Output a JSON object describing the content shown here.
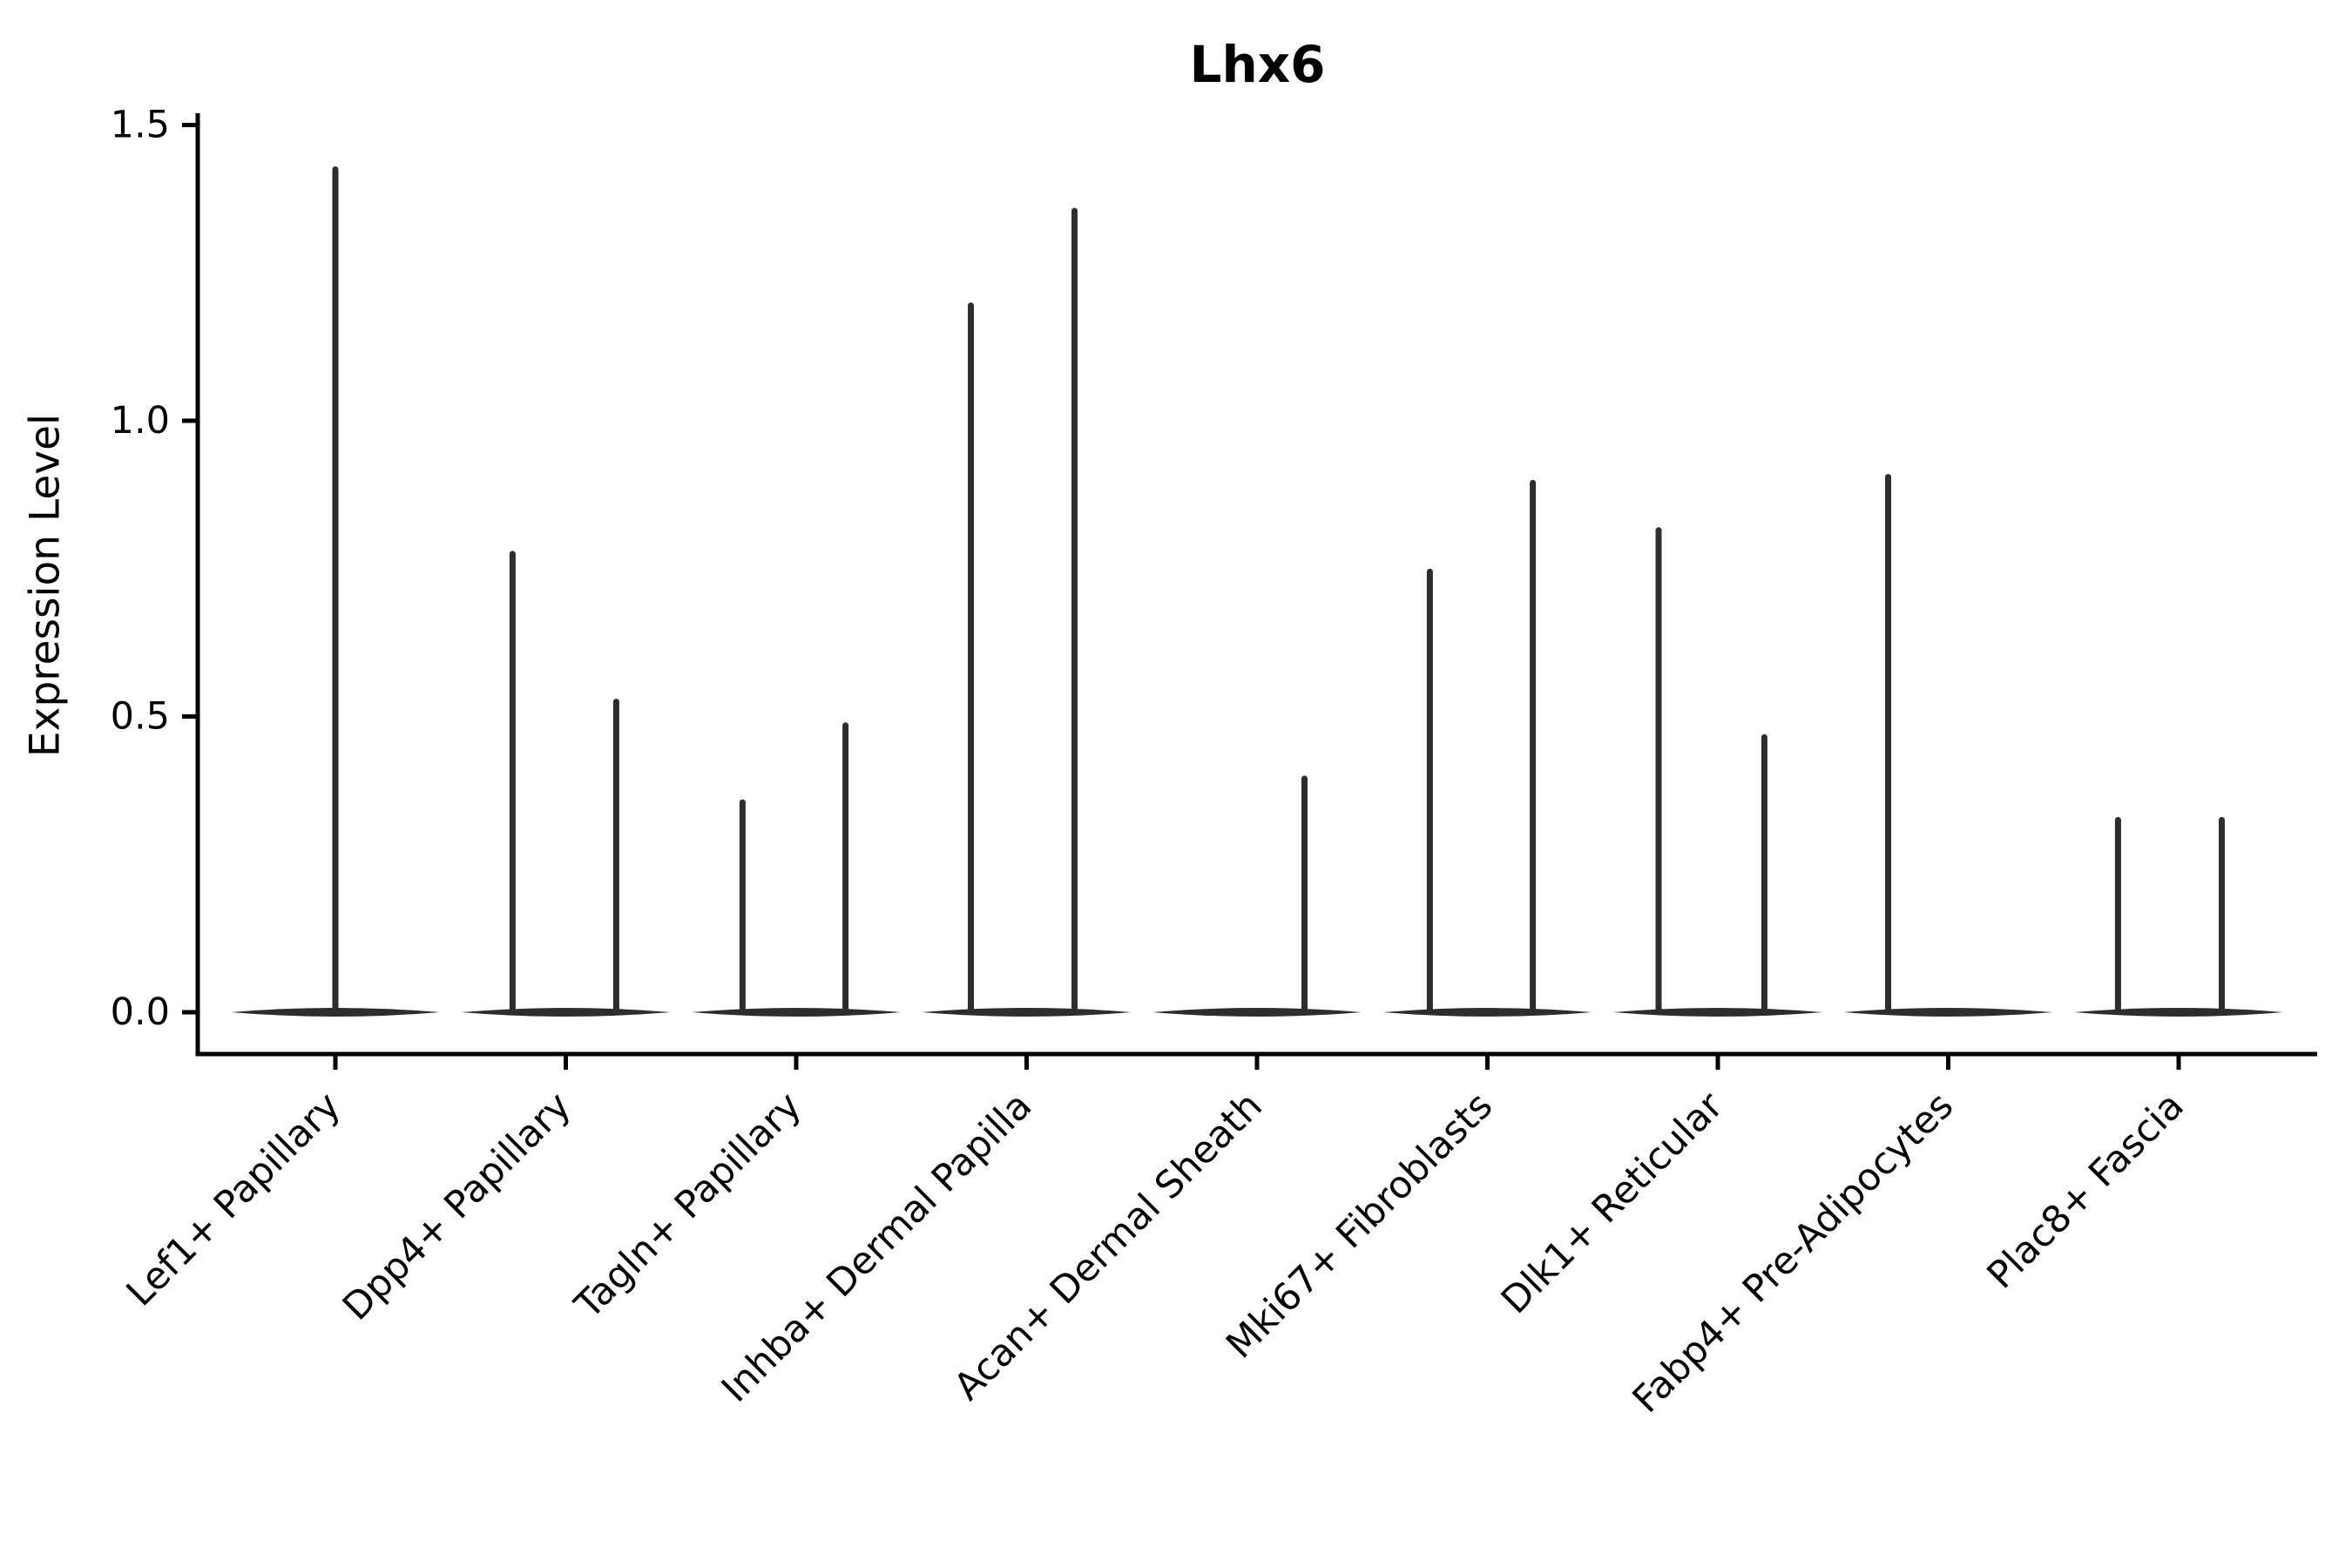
{
  "chart_data": {
    "type": "violin",
    "title": "Lhx6",
    "xlabel": "",
    "ylabel": "Expression Level",
    "categories": [
      "Lef1+ Papillary",
      "Dpp4+ Papillary",
      "Tagln+ Papillary",
      "Inhba+ Dermal Papilla",
      "Acan+ Dermal Sheath",
      "Mki67+ Fibroblasts",
      "Dlk1+ Reticular",
      "Fabp4+ Pre-Adipocytes",
      "Plac8+ Fascia"
    ],
    "ylim": [
      -0.075,
      1.6
    ],
    "yticks": [
      0.0,
      0.5,
      1.0,
      1.5
    ],
    "ytick_labels": [
      "0.0",
      "0.5",
      "1.0",
      "1.5"
    ],
    "grid": false,
    "legend": null,
    "violin_color": "#2d2d2d",
    "axis_color": "#000000",
    "violins": [
      {
        "category": "Lef1+ Papillary",
        "baseline_value": 0,
        "spikes": [
          {
            "offset_frac": 0.0,
            "max_value": 1.43
          }
        ]
      },
      {
        "category": "Dpp4+ Papillary",
        "baseline_value": 0,
        "spikes": [
          {
            "offset_frac": -0.231,
            "max_value": 0.78
          },
          {
            "offset_frac": 0.219,
            "max_value": 0.53
          }
        ]
      },
      {
        "category": "Tagln+ Papillary",
        "baseline_value": 0,
        "spikes": [
          {
            "offset_frac": -0.233,
            "max_value": 0.36
          },
          {
            "offset_frac": 0.214,
            "max_value": 0.49
          }
        ]
      },
      {
        "category": "Inhba+ Dermal Papilla",
        "baseline_value": 0,
        "spikes": [
          {
            "offset_frac": -0.242,
            "max_value": 1.2
          },
          {
            "offset_frac": 0.208,
            "max_value": 1.36
          }
        ]
      },
      {
        "category": "Acan+ Dermal Sheath",
        "baseline_value": 0,
        "spikes": [
          {
            "offset_frac": 0.206,
            "max_value": 0.4
          }
        ]
      },
      {
        "category": "Mki67+ Fibroblasts",
        "baseline_value": 0,
        "spikes": [
          {
            "offset_frac": -0.25,
            "max_value": 0.75
          },
          {
            "offset_frac": 0.197,
            "max_value": 0.9
          }
        ]
      },
      {
        "category": "Dlk1+ Reticular",
        "baseline_value": 0,
        "spikes": [
          {
            "offset_frac": -0.257,
            "max_value": 0.82
          },
          {
            "offset_frac": 0.202,
            "max_value": 0.47
          }
        ]
      },
      {
        "category": "Fabp4+ Pre-Adipocytes",
        "baseline_value": 0,
        "spikes": [
          {
            "offset_frac": -0.261,
            "max_value": 0.91
          }
        ]
      },
      {
        "category": "Plac8+ Fascia",
        "baseline_value": 0,
        "spikes": [
          {
            "offset_frac": -0.263,
            "max_value": 0.33
          },
          {
            "offset_frac": 0.187,
            "max_value": 0.33
          }
        ]
      }
    ]
  }
}
